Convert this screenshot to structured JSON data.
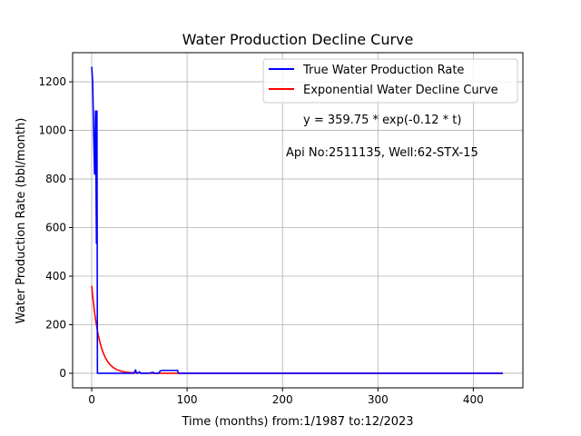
{
  "chart_data": {
    "type": "line",
    "title": "Water Production Decline Curve",
    "xlabel": "Time (months) from:1/1987 to:12/2023",
    "ylabel": "Water Production Rate (bbl/month)",
    "xlim": [
      -20,
      452
    ],
    "ylim": [
      -60,
      1320
    ],
    "xticks": [
      0,
      100,
      200,
      300,
      400
    ],
    "yticks": [
      0,
      200,
      400,
      600,
      800,
      1000,
      1200
    ],
    "grid": true,
    "legend_position": "top-right",
    "annotations": [
      "y = 359.75 * exp(-0.12 * t)",
      "Api No:2511135, Well:62-STX-15"
    ],
    "series": [
      {
        "name": "True Water Production Rate",
        "color": "#0000ff",
        "x": [
          0,
          1,
          2,
          3,
          4,
          5,
          5.5,
          6,
          10,
          20,
          30,
          44,
          46,
          47,
          48,
          50,
          51,
          52,
          60,
          64,
          66,
          70,
          72,
          74,
          80,
          90,
          91,
          92,
          100,
          150,
          160,
          200,
          300,
          400,
          431
        ],
        "y": [
          1262,
          1200,
          1000,
          820,
          1080,
          535,
          1080,
          0,
          0,
          0,
          0,
          0,
          14,
          0,
          0,
          6,
          0,
          0,
          0,
          4,
          0,
          0,
          10,
          12,
          12,
          12,
          0,
          0,
          0,
          0,
          0,
          0,
          0,
          0,
          0
        ]
      },
      {
        "name": "Exponential Water Decline Curve",
        "color": "#ff0000",
        "equation": {
          "a": 359.75,
          "b": 0.12
        },
        "x_range": [
          0,
          431
        ]
      }
    ]
  }
}
